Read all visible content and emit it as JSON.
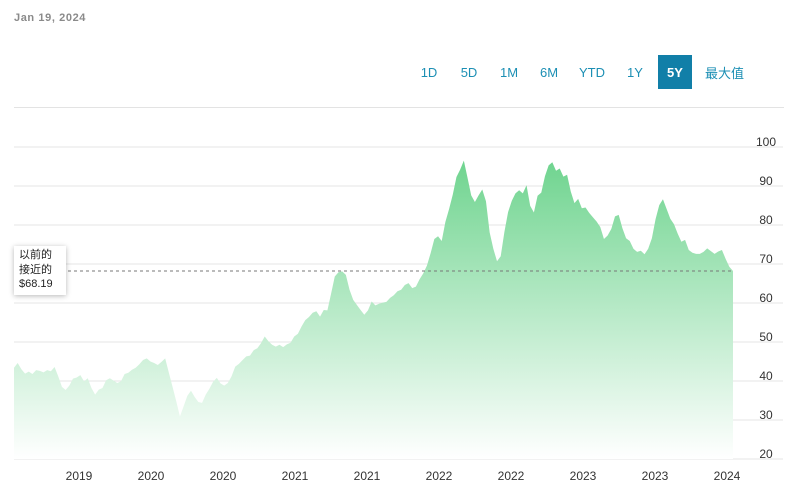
{
  "date_label": "Jan 19, 2024",
  "range_buttons": [
    "1D",
    "5D",
    "1M",
    "6M",
    "YTD",
    "1Y",
    "5Y",
    "最大值"
  ],
  "active_range": "5Y",
  "previous_close": {
    "line1": "以前的",
    "line2": "接近的",
    "value_text": "$68.19",
    "value": 68.19
  },
  "colors": {
    "area_top": "#6fd48f",
    "area_bottom": "#ffffff",
    "accent": "#117fa8",
    "link": "#1c8fb4"
  },
  "chart_data": {
    "type": "area",
    "title": "",
    "xlabel": "",
    "ylabel": "",
    "ylim": [
      20,
      100
    ],
    "y_ticks": [
      20,
      30,
      40,
      50,
      60,
      70,
      80,
      90,
      100
    ],
    "x_tick_labels": [
      "2019",
      "2020",
      "2020",
      "2021",
      "2021",
      "2022",
      "2022",
      "2023",
      "2023",
      "2024"
    ],
    "grid": true,
    "series": [
      {
        "values": [
          43.4,
          44.6,
          43.0,
          41.9,
          42.4,
          41.8,
          42.8,
          42.6,
          42.2,
          42.8,
          42.5,
          43.6,
          41.2,
          38.5,
          37.7,
          38.8,
          40.6,
          40.9,
          41.5,
          39.9,
          40.7,
          38.2,
          36.5,
          37.8,
          38.2,
          40.2,
          40.7,
          40.1,
          39.5,
          39.9,
          41.8,
          42.1,
          42.9,
          43.4,
          44.3,
          45.4,
          45.8,
          45.0,
          44.6,
          44.1,
          44.9,
          45.8,
          42.1,
          38.5,
          34.8,
          30.9,
          33.5,
          36.2,
          37.5,
          35.9,
          34.6,
          34.4,
          36.5,
          38.0,
          39.8,
          40.8,
          39.4,
          38.8,
          39.5,
          41.2,
          43.7,
          44.4,
          45.4,
          46.3,
          46.5,
          47.9,
          48.4,
          49.7,
          51.4,
          50.2,
          49.3,
          48.8,
          49.3,
          48.7,
          49.4,
          49.8,
          51.4,
          52.1,
          54.0,
          55.6,
          56.4,
          57.5,
          57.9,
          56.5,
          58.2,
          58.1,
          62.4,
          66.8,
          67.9,
          68.1,
          67.2,
          63.4,
          60.8,
          59.5,
          58.2,
          57.0,
          58.1,
          60.4,
          59.4,
          59.8,
          60.1,
          60.3,
          61.3,
          62.0,
          63.0,
          63.4,
          64.6,
          65.1,
          63.8,
          64.2,
          66.1,
          67.6,
          69.6,
          72.8,
          76.4,
          77.1,
          75.9,
          80.8,
          84.1,
          87.8,
          92.3,
          94.2,
          96.5,
          92.1,
          87.6,
          85.9,
          87.6,
          89.1,
          86.1,
          78.1,
          73.9,
          70.7,
          72.0,
          78.2,
          83.3,
          86.2,
          88.1,
          88.9,
          88.1,
          90.2,
          84.9,
          83.2,
          87.5,
          88.3,
          92.5,
          95.3,
          96.1,
          93.9,
          94.5,
          92.4,
          92.9,
          88.6,
          85.6,
          86.7,
          84.3,
          84.5,
          83.1,
          82.0,
          80.9,
          79.5,
          76.4,
          77.3,
          79.0,
          82.2,
          82.6,
          79.2,
          76.6,
          75.9,
          73.9,
          73.1,
          73.4,
          72.5,
          73.9,
          76.6,
          81.5,
          85.1,
          86.6,
          84.1,
          81.6,
          80.2,
          77.8,
          75.7,
          76.2,
          73.6,
          72.9,
          72.6,
          72.6,
          73.1,
          74.0,
          73.3,
          72.6,
          73.2,
          73.6,
          71.3,
          69.3,
          68.2
        ]
      }
    ]
  }
}
